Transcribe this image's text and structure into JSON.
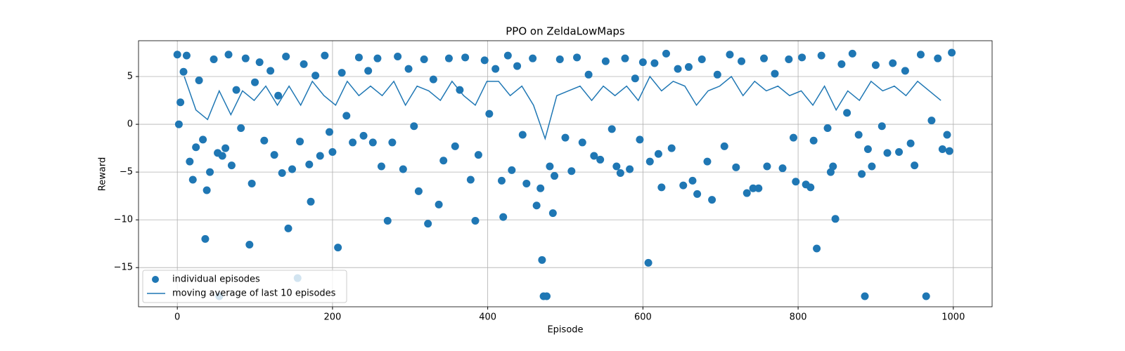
{
  "chart_data": {
    "type": "scatter",
    "title": "PPO on ZeldaLowMaps",
    "x_label": "Episode",
    "y_label": "Reward",
    "xlim": [
      -50,
      1050
    ],
    "ylim": [
      -19.1,
      8.75
    ],
    "xticks": [
      0,
      200,
      400,
      600,
      800,
      1000
    ],
    "yticks": [
      {
        "value": -15,
        "label": "−15"
      },
      {
        "value": -10,
        "label": "−10"
      },
      {
        "value": -5,
        "label": "−5"
      },
      0,
      5
    ],
    "grid": true,
    "legend": "lower left",
    "series": [
      {
        "name": "individual episodes",
        "type": "scatter",
        "color": "#1f77b4",
        "x": [
          0,
          2,
          4,
          8,
          12,
          16,
          20,
          24,
          28,
          33,
          36,
          38,
          42,
          47,
          52,
          54,
          58,
          62,
          66,
          70,
          76,
          82,
          88,
          93,
          96,
          100,
          106,
          112,
          120,
          125,
          130,
          135,
          140,
          143,
          148,
          155,
          158,
          163,
          170,
          172,
          178,
          184,
          190,
          196,
          200,
          207,
          212,
          218,
          226,
          234,
          240,
          246,
          252,
          258,
          263,
          271,
          277,
          284,
          291,
          298,
          305,
          311,
          318,
          323,
          330,
          337,
          343,
          350,
          358,
          364,
          371,
          378,
          384,
          388,
          396,
          402,
          410,
          418,
          420,
          426,
          431,
          438,
          445,
          450,
          458,
          463,
          468,
          470,
          472,
          476,
          480,
          484,
          486,
          493,
          500,
          508,
          515,
          522,
          530,
          537,
          545,
          552,
          560,
          566,
          571,
          577,
          583,
          590,
          596,
          600,
          607,
          609,
          615,
          620,
          624,
          630,
          637,
          645,
          652,
          659,
          664,
          670,
          676,
          683,
          689,
          696,
          705,
          712,
          720,
          727,
          734,
          742,
          749,
          756,
          760,
          770,
          780,
          788,
          794,
          797,
          805,
          810,
          816,
          820,
          824,
          830,
          838,
          842,
          845,
          848,
          856,
          863,
          870,
          878,
          882,
          886,
          890,
          895,
          900,
          908,
          915,
          922,
          930,
          938,
          945,
          950,
          958,
          965,
          972,
          980,
          986,
          992,
          995,
          998
        ],
        "values": [
          7.3,
          0,
          2.3,
          5.5,
          7.2,
          -3.9,
          -5.8,
          -2.4,
          4.6,
          -1.6,
          -12,
          -6.9,
          -5,
          6.8,
          -3,
          -18,
          -3.3,
          -2.5,
          7.3,
          -4.3,
          3.6,
          -0.4,
          6.9,
          -12.6,
          -6.2,
          4.4,
          6.5,
          -1.7,
          5.6,
          -3.2,
          3,
          -5.1,
          7.1,
          -10.9,
          -4.7,
          -16.1,
          -1.8,
          6.3,
          -4.2,
          -8.1,
          5.1,
          -3.3,
          7.2,
          -0.8,
          -2.9,
          -12.9,
          5.4,
          0.9,
          -1.9,
          7,
          -1.2,
          5.6,
          -1.9,
          6.9,
          -4.4,
          -10.1,
          -1.9,
          7.1,
          -4.7,
          5.8,
          -0.2,
          -7,
          6.8,
          -10.4,
          4.7,
          -8.4,
          -3.8,
          6.9,
          -2.3,
          3.6,
          7,
          -5.8,
          -10.1,
          -3.2,
          6.7,
          1.1,
          5.8,
          -5.9,
          -9.7,
          7.2,
          -4.8,
          6.1,
          -1.1,
          -6.2,
          6.9,
          -8.5,
          -6.7,
          -14.2,
          -18,
          -18,
          -4.4,
          -9.3,
          -5.4,
          6.8,
          -1.4,
          -4.9,
          7,
          -1.9,
          5.2,
          -3.3,
          -3.7,
          6.6,
          -0.5,
          -4.4,
          -5.1,
          6.9,
          -4.7,
          4.8,
          -1.6,
          6.5,
          -14.5,
          -3.9,
          6.4,
          -3.1,
          -6.6,
          7.4,
          -2.5,
          5.8,
          -6.4,
          6,
          -5.9,
          -7.3,
          6.8,
          -3.9,
          -7.9,
          5.2,
          -2.3,
          7.3,
          -4.5,
          6.6,
          -7.2,
          -6.7,
          -6.7,
          6.9,
          -4.4,
          5.3,
          -4.6,
          6.8,
          -1.4,
          -6,
          7,
          -6.3,
          -6.6,
          -1.7,
          -13,
          7.2,
          -0.4,
          -5,
          -4.4,
          -9.9,
          6.3,
          1.2,
          7.4,
          -1.1,
          -5.2,
          -18,
          -2.6,
          -4.4,
          6.2,
          -0.2,
          -3,
          6.4,
          -2.9,
          5.6,
          -2,
          -4.3,
          7.3,
          -18,
          0.4,
          6.9,
          -2.6,
          -1.1,
          -2.8,
          7.5
        ]
      },
      {
        "name": "moving average of last 10 episodes",
        "type": "line",
        "color": "#1f77b4",
        "x": [
          9,
          24,
          39,
          54,
          69,
          84,
          99,
          114,
          129,
          144,
          159,
          174,
          189,
          204,
          219,
          234,
          249,
          264,
          279,
          294,
          309,
          324,
          339,
          354,
          369,
          384,
          399,
          414,
          429,
          444,
          459,
          474,
          489,
          504,
          519,
          534,
          549,
          564,
          579,
          594,
          609,
          624,
          639,
          654,
          669,
          684,
          699,
          714,
          729,
          744,
          759,
          774,
          789,
          804,
          819,
          834,
          849,
          864,
          879,
          894,
          909,
          924,
          939,
          954,
          969,
          984
        ],
        "values": [
          5,
          1.5,
          0.5,
          3.5,
          1,
          3.5,
          2.5,
          4,
          2,
          4,
          2,
          4.5,
          3,
          2,
          4.5,
          3,
          4,
          3,
          4.5,
          2,
          4,
          3.5,
          2.5,
          4.5,
          3,
          2,
          4.5,
          4.5,
          3,
          4,
          2,
          -1.5,
          3,
          3.5,
          4,
          2.5,
          4,
          3,
          4,
          2.5,
          5,
          3.5,
          4.5,
          4,
          2,
          3.5,
          4,
          5,
          3,
          4.5,
          3.5,
          4,
          3,
          3.5,
          2,
          4,
          1.5,
          3.5,
          2.5,
          4.5,
          3.5,
          4,
          3,
          4.5,
          3.5,
          2.5
        ]
      }
    ]
  }
}
